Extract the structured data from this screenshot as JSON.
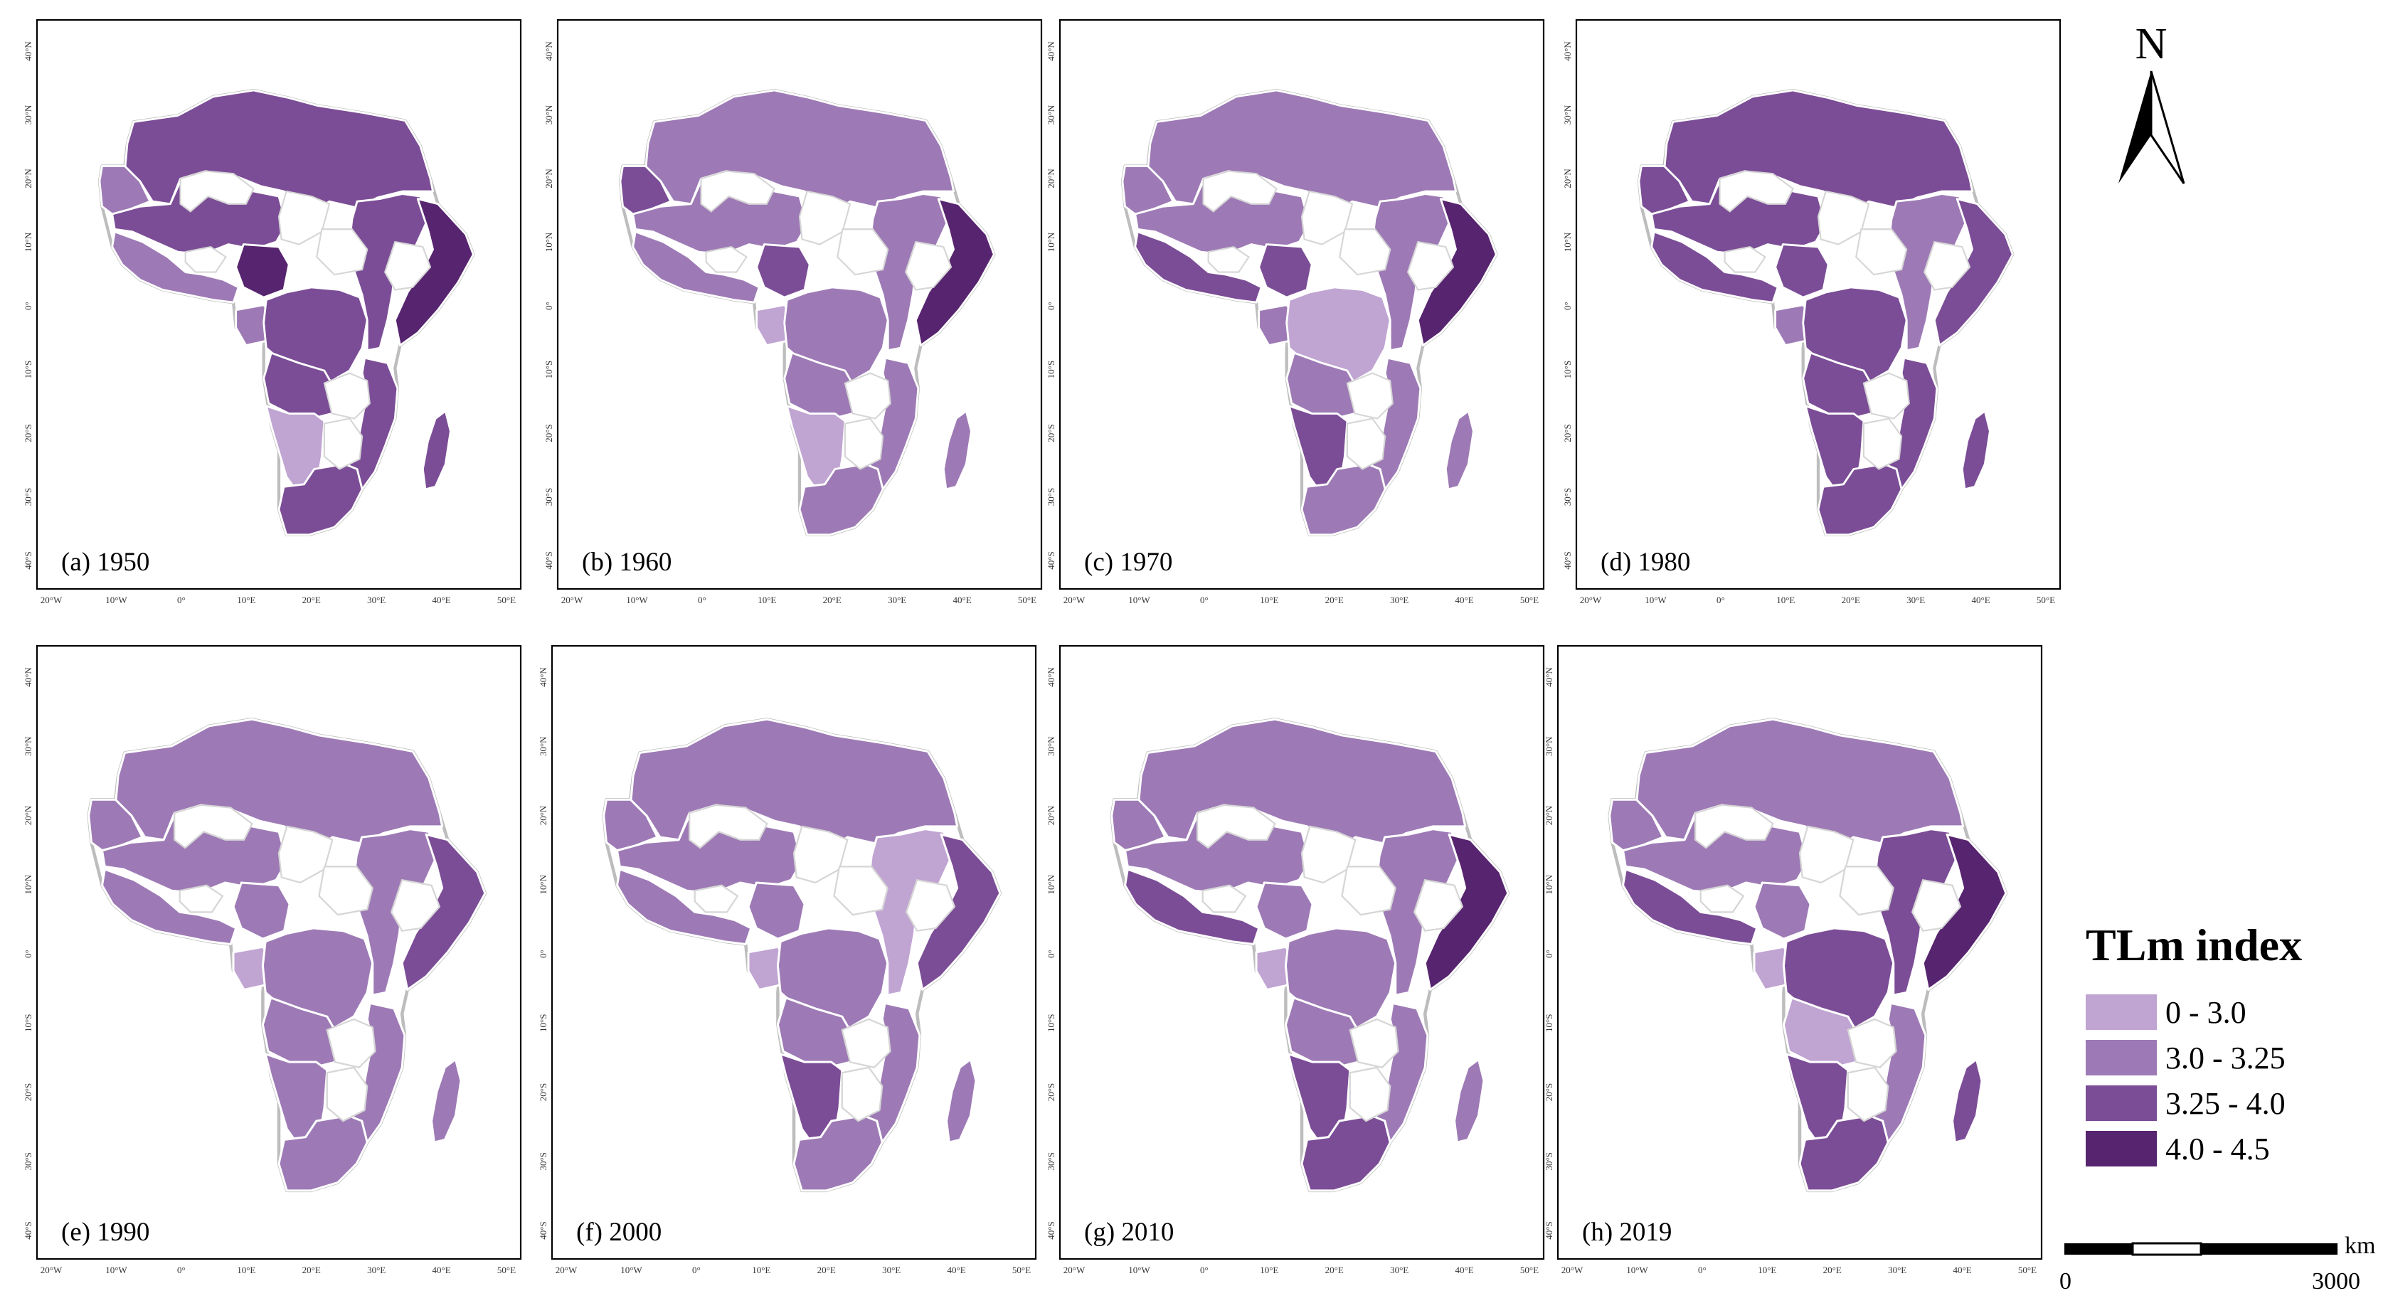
{
  "legend": {
    "title": "TLm index",
    "classes": [
      {
        "label": "0 - 3.0",
        "color": "#c0a4d2"
      },
      {
        "label": "3.0 - 3.25",
        "color": "#9d7ab5"
      },
      {
        "label": "3.25 - 4.0",
        "color": "#7b4d96"
      },
      {
        "label": "4.0 - 4.5",
        "color": "#57246f"
      }
    ],
    "no_data_color": "#ffffff"
  },
  "north_arrow": {
    "letter": "N"
  },
  "scale_bar": {
    "start_label": "0",
    "end_label": "3000",
    "unit": "km"
  },
  "axes": {
    "x_ticks": [
      "20°W",
      "10°W",
      "0°",
      "10°E",
      "20°E",
      "30°E",
      "40°E",
      "50°E"
    ],
    "y_ticks": [
      "40°N",
      "30°N",
      "20°N",
      "10°N",
      "0°",
      "10°S",
      "20°S",
      "30°S",
      "40°S"
    ]
  },
  "maps": [
    {
      "label": "(a) 1950",
      "year": 1950,
      "classes": {
        "north": 2,
        "west": 2,
        "nwest": 1,
        "nigeria": 3,
        "coastal": 1,
        "gulf": 1,
        "central": 2,
        "east": 2,
        "horn": 3,
        "angola": 2,
        "namibia": 0,
        "mozambique": 2,
        "south": 2,
        "madagascar": 2
      }
    },
    {
      "label": "(b) 1960",
      "year": 1960,
      "classes": {
        "north": 1,
        "west": 1,
        "nwest": 2,
        "nigeria": 2,
        "coastal": 1,
        "gulf": 0,
        "central": 1,
        "east": 1,
        "horn": 3,
        "angola": 1,
        "namibia": 0,
        "mozambique": 1,
        "south": 1,
        "madagascar": 1
      }
    },
    {
      "label": "(c) 1970",
      "year": 1970,
      "classes": {
        "north": 1,
        "west": 1,
        "nwest": 1,
        "nigeria": 2,
        "coastal": 2,
        "gulf": 1,
        "central": 0,
        "east": 1,
        "horn": 3,
        "angola": 1,
        "namibia": 2,
        "mozambique": 1,
        "south": 1,
        "madagascar": 1
      }
    },
    {
      "label": "(d) 1980",
      "year": 1980,
      "classes": {
        "north": 2,
        "west": 2,
        "nwest": 2,
        "nigeria": 2,
        "coastal": 2,
        "gulf": 1,
        "central": 2,
        "east": 1,
        "horn": 2,
        "angola": 2,
        "namibia": 2,
        "mozambique": 2,
        "south": 2,
        "madagascar": 2
      }
    },
    {
      "label": "(e) 1990",
      "year": 1990,
      "classes": {
        "north": 1,
        "west": 1,
        "nwest": 1,
        "nigeria": 1,
        "coastal": 1,
        "gulf": 0,
        "central": 1,
        "east": 1,
        "horn": 2,
        "angola": 1,
        "namibia": 1,
        "mozambique": 1,
        "south": 1,
        "madagascar": 1
      }
    },
    {
      "label": "(f) 2000",
      "year": 2000,
      "classes": {
        "north": 1,
        "west": 1,
        "nwest": 1,
        "nigeria": 1,
        "coastal": 1,
        "gulf": 0,
        "central": 1,
        "east": 0,
        "horn": 2,
        "angola": 1,
        "namibia": 2,
        "mozambique": 1,
        "south": 1,
        "madagascar": 1
      }
    },
    {
      "label": "(g) 2010",
      "year": 2010,
      "classes": {
        "north": 1,
        "west": 1,
        "nwest": 1,
        "nigeria": 1,
        "coastal": 2,
        "gulf": 0,
        "central": 1,
        "east": 1,
        "horn": 3,
        "angola": 1,
        "namibia": 2,
        "mozambique": 1,
        "south": 2,
        "madagascar": 1
      }
    },
    {
      "label": "(h) 2019",
      "year": 2019,
      "classes": {
        "north": 1,
        "west": 1,
        "nwest": 1,
        "nigeria": 1,
        "coastal": 2,
        "gulf": 0,
        "central": 2,
        "east": 2,
        "horn": 3,
        "angola": 0,
        "namibia": 2,
        "mozambique": 1,
        "south": 2,
        "madagascar": 2
      }
    }
  ]
}
